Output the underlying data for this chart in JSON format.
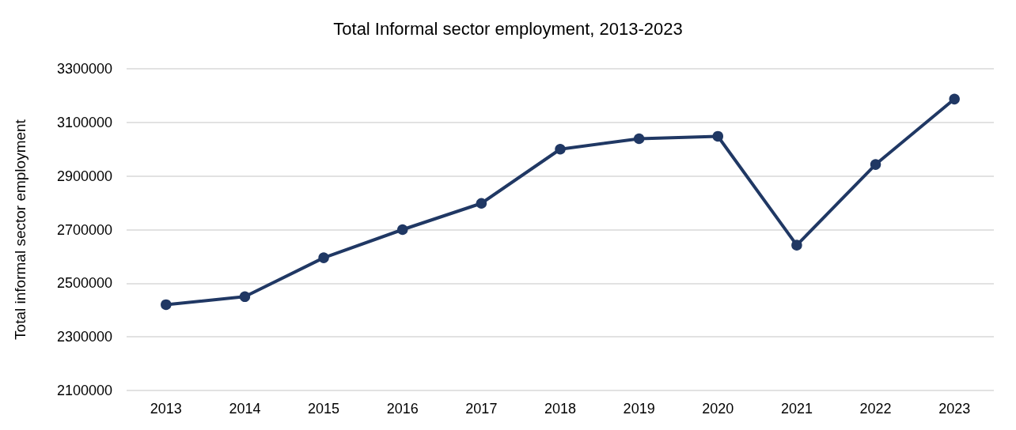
{
  "chart_data": {
    "type": "line",
    "title": "Total Informal sector employment, 2013-2023",
    "ylabel": "Total informal sector employment",
    "categories": [
      "2013",
      "2014",
      "2015",
      "2016",
      "2017",
      "2018",
      "2019",
      "2020",
      "2021",
      "2022",
      "2023"
    ],
    "series": [
      {
        "color": "#203864",
        "values": [
          2420000,
          2450000,
          2595000,
          2700000,
          2798000,
          3000000,
          3039000,
          3048000,
          2642000,
          2943000,
          3187000
        ]
      }
    ],
    "ylim": [
      2100000,
      3300000
    ],
    "yticks": [
      2100000,
      2300000,
      2500000,
      2700000,
      2900000,
      3100000,
      3300000
    ],
    "grid": "y",
    "marker": "circle",
    "line_style": "solid"
  }
}
